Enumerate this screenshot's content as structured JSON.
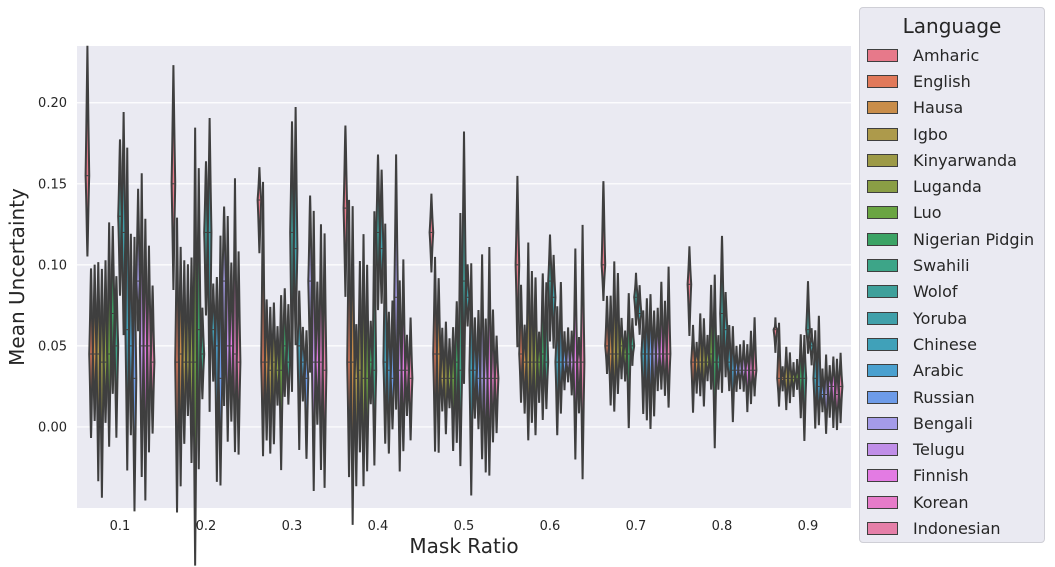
{
  "chart_data": {
    "type": "violin",
    "xlabel": "Mask Ratio",
    "ylabel": "Mean Uncertainty",
    "categories": [
      "0.1",
      "0.2",
      "0.3",
      "0.4",
      "0.5",
      "0.6",
      "0.7",
      "0.8",
      "0.9"
    ],
    "ylim": [
      -0.05,
      0.235
    ],
    "yticks": [
      0.0,
      0.05,
      0.1,
      0.15,
      0.2
    ],
    "ytick_labels": [
      "0.00",
      "0.05",
      "0.10",
      "0.15",
      "0.20"
    ],
    "grid": true,
    "legend_position": "outside-right",
    "legend_title": "Language",
    "series": [
      {
        "name": "Amharic",
        "color": "#e7798a",
        "medians": [
          0.155,
          0.15,
          0.14,
          0.135,
          0.12,
          0.1,
          0.1,
          0.088,
          0.06
        ]
      },
      {
        "name": "English",
        "color": "#e1795a",
        "medians": [
          0.045,
          0.04,
          0.04,
          0.04,
          0.045,
          0.045,
          0.05,
          0.04,
          0.03
        ]
      },
      {
        "name": "Hausa",
        "color": "#c98d4a",
        "medians": [
          0.045,
          0.045,
          0.04,
          0.04,
          0.045,
          0.04,
          0.045,
          0.04,
          0.03
        ]
      },
      {
        "name": "Igbo",
        "color": "#ad9a4b",
        "medians": [
          0.045,
          0.04,
          0.035,
          0.03,
          0.03,
          0.04,
          0.045,
          0.04,
          0.03
        ]
      },
      {
        "name": "Kinyarwanda",
        "color": "#9d9a47",
        "medians": [
          0.04,
          0.04,
          0.04,
          0.035,
          0.03,
          0.04,
          0.045,
          0.04,
          0.03
        ]
      },
      {
        "name": "Luganda",
        "color": "#8a9e45",
        "medians": [
          0.04,
          0.04,
          0.035,
          0.03,
          0.03,
          0.04,
          0.05,
          0.04,
          0.03
        ]
      },
      {
        "name": "Luo",
        "color": "#6aa542",
        "medians": [
          0.045,
          0.04,
          0.035,
          0.03,
          0.03,
          0.04,
          0.045,
          0.045,
          0.03
        ]
      },
      {
        "name": "Nigerian Pidgin",
        "color": "#3ba365",
        "medians": [
          0.07,
          0.06,
          0.05,
          0.04,
          0.04,
          0.045,
          0.045,
          0.04,
          0.03
        ]
      },
      {
        "name": "Swahili",
        "color": "#3da588",
        "medians": [
          0.05,
          0.045,
          0.04,
          0.035,
          0.035,
          0.04,
          0.05,
          0.04,
          0.03
        ]
      },
      {
        "name": "Wolof",
        "color": "#3ea09b",
        "medians": [
          0.13,
          0.12,
          0.12,
          0.12,
          0.09,
          0.09,
          0.08,
          0.07,
          0.06
        ]
      },
      {
        "name": "Yoruba",
        "color": "#40a0aa",
        "medians": [
          0.12,
          0.12,
          0.11,
          0.11,
          0.08,
          0.08,
          0.07,
          0.06,
          0.05
        ]
      },
      {
        "name": "Chinese",
        "color": "#40a1b9",
        "medians": [
          0.06,
          0.06,
          0.05,
          0.04,
          0.035,
          0.04,
          0.045,
          0.04,
          0.03
        ]
      },
      {
        "name": "Arabic",
        "color": "#4aa0cf",
        "medians": [
          0.05,
          0.05,
          0.04,
          0.035,
          0.035,
          0.04,
          0.045,
          0.035,
          0.025
        ]
      },
      {
        "name": "Russian",
        "color": "#6d9be8",
        "medians": [
          0.03,
          0.03,
          0.03,
          0.03,
          0.03,
          0.04,
          0.045,
          0.035,
          0.02
        ]
      },
      {
        "name": "Bengali",
        "color": "#a49be8",
        "medians": [
          0.09,
          0.09,
          0.09,
          0.08,
          0.03,
          0.04,
          0.045,
          0.035,
          0.02
        ]
      },
      {
        "name": "Telugu",
        "color": "#c08ee8",
        "medians": [
          0.05,
          0.05,
          0.04,
          0.035,
          0.03,
          0.04,
          0.045,
          0.035,
          0.025
        ]
      },
      {
        "name": "Finnish",
        "color": "#e37be3",
        "medians": [
          0.05,
          0.05,
          0.04,
          0.035,
          0.03,
          0.04,
          0.045,
          0.035,
          0.025
        ]
      },
      {
        "name": "Korean",
        "color": "#e67bc9",
        "medians": [
          0.05,
          0.045,
          0.04,
          0.035,
          0.03,
          0.04,
          0.045,
          0.035,
          0.02
        ]
      },
      {
        "name": "Indonesian",
        "color": "#e57fa8",
        "medians": [
          0.04,
          0.04,
          0.035,
          0.03,
          0.03,
          0.04,
          0.045,
          0.035,
          0.025
        ]
      }
    ]
  }
}
